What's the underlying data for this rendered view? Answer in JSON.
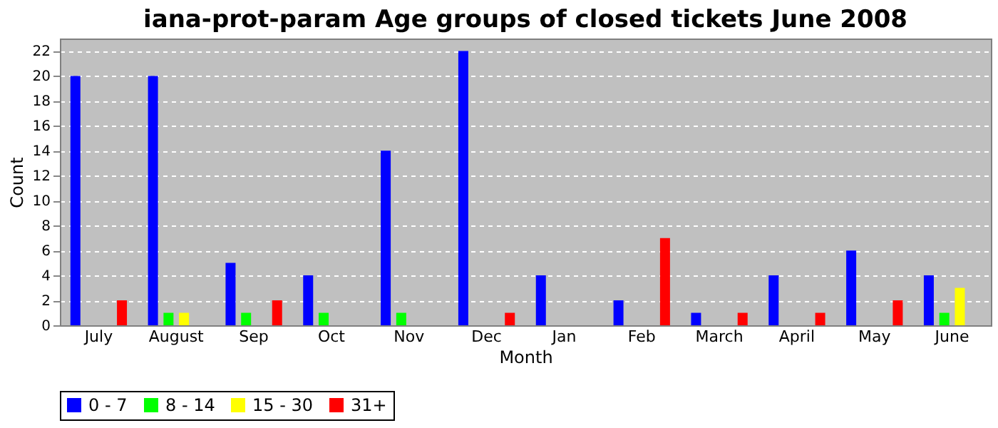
{
  "chart_data": {
    "type": "bar",
    "title": "iana-prot-param Age groups of closed tickets June 2008",
    "xlabel": "Month",
    "ylabel": "Count",
    "categories": [
      "July",
      "August",
      "Sep",
      "Oct",
      "Nov",
      "Dec",
      "Jan",
      "Feb",
      "March",
      "April",
      "May",
      "June"
    ],
    "series": [
      {
        "name": "0 - 7",
        "color": "#0000ff",
        "values": [
          20,
          20,
          5,
          4,
          14,
          22,
          4,
          2,
          1,
          4,
          6,
          4
        ]
      },
      {
        "name": "8 - 14",
        "color": "#00ff00",
        "values": [
          0,
          1,
          1,
          1,
          1,
          0,
          0,
          0,
          0,
          0,
          0,
          1
        ]
      },
      {
        "name": "15 - 30",
        "color": "#ffff00",
        "values": [
          0,
          1,
          0,
          0,
          0,
          0,
          0,
          0,
          0,
          0,
          0,
          3
        ]
      },
      {
        "name": "31+",
        "color": "#ff0000",
        "values": [
          2,
          0,
          2,
          0,
          0,
          1,
          0,
          7,
          1,
          1,
          2,
          0
        ]
      }
    ],
    "ylim": [
      0,
      23
    ],
    "yticks": [
      0,
      2,
      4,
      6,
      8,
      10,
      12,
      14,
      16,
      18,
      20,
      22
    ],
    "grid": "y",
    "legend": "bottom"
  }
}
